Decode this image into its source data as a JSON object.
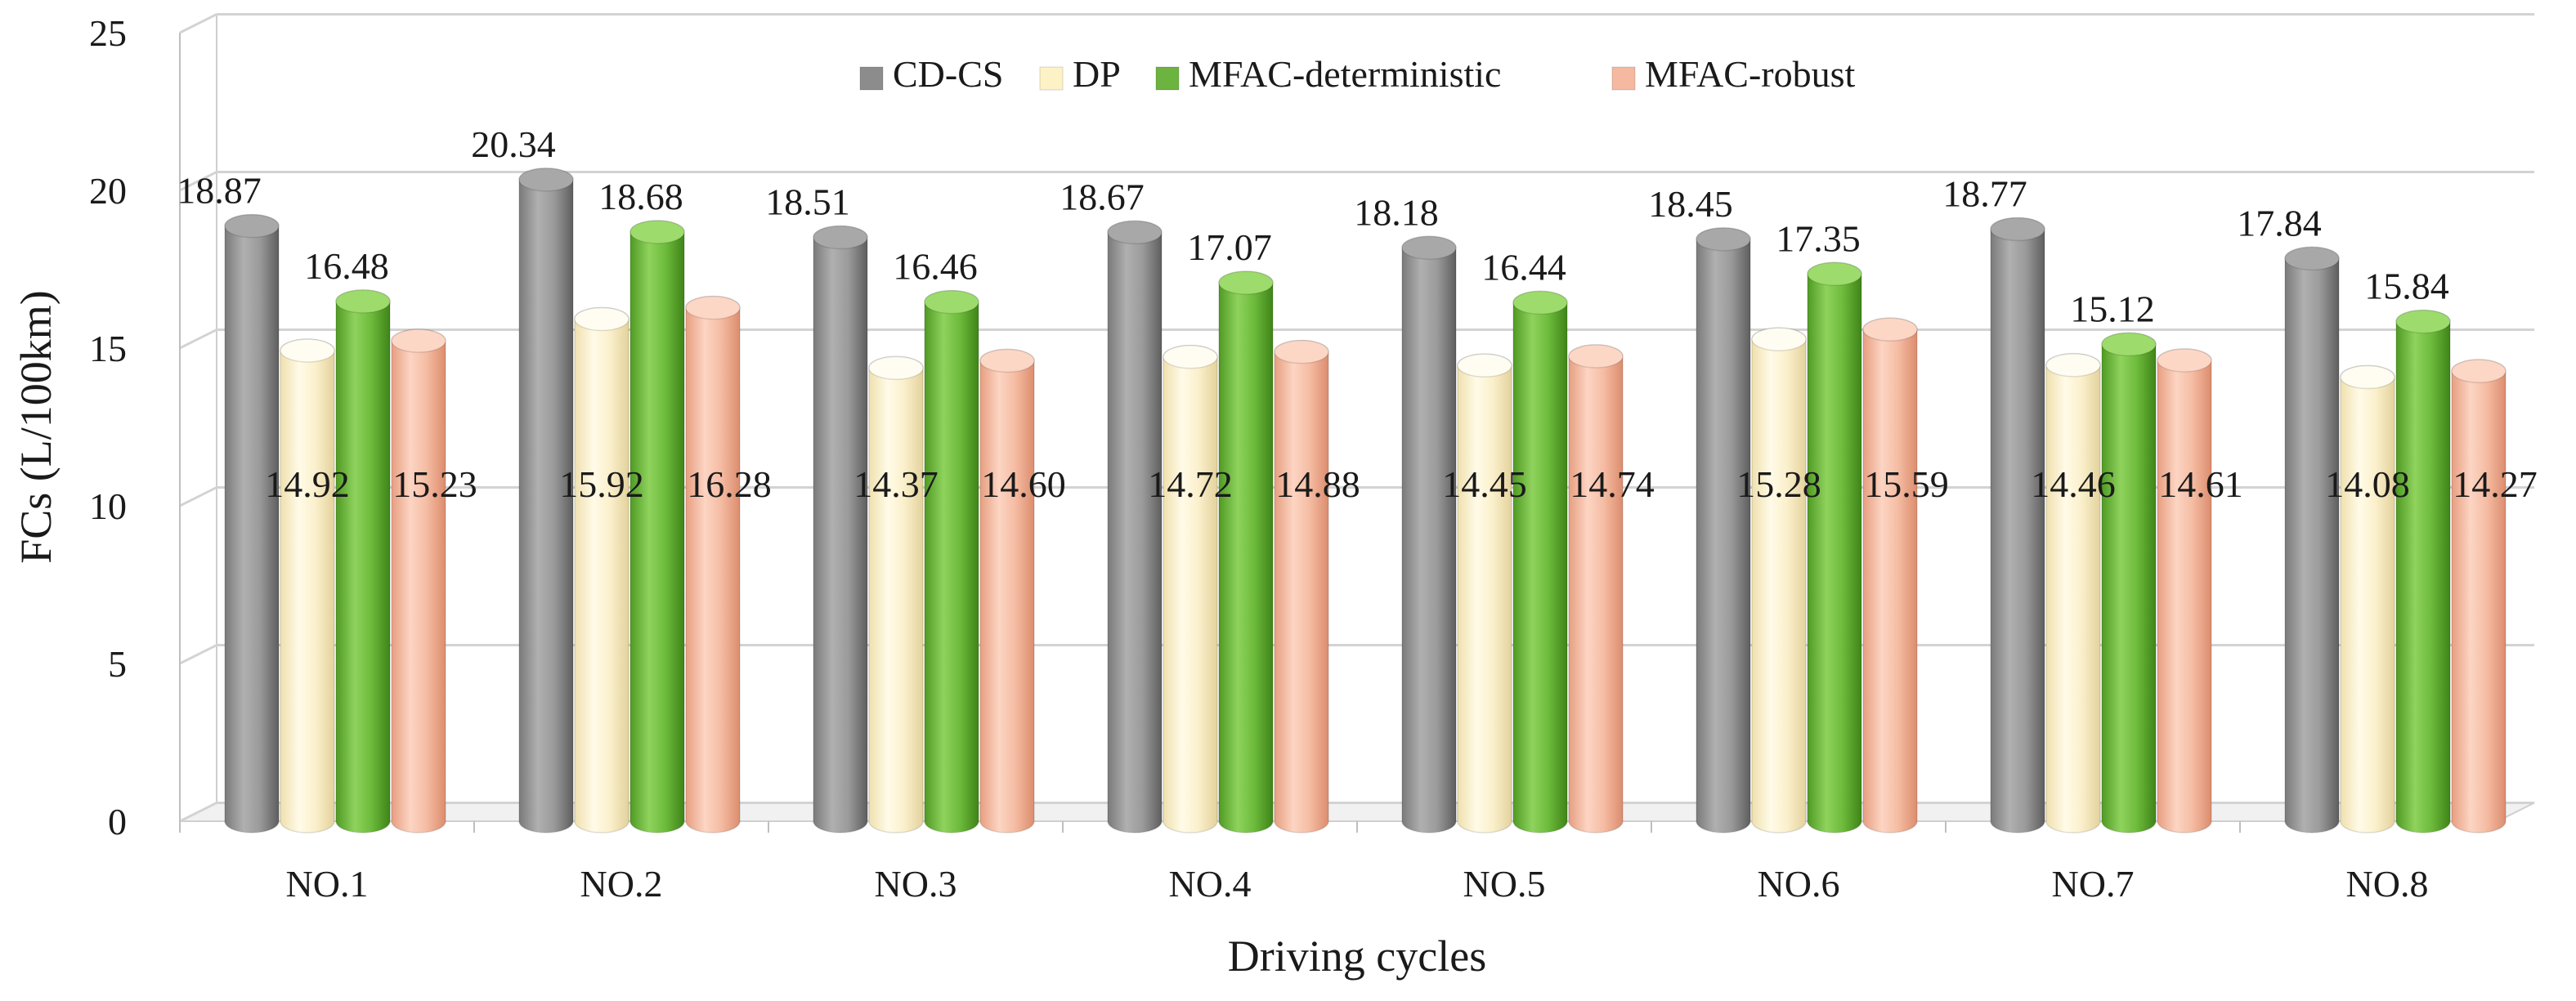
{
  "chart_data": {
    "type": "bar",
    "title": "",
    "xlabel": "Driving cycles",
    "ylabel": "FCs (L/100km)",
    "ylim": [
      0,
      25
    ],
    "yticks": [
      0,
      5,
      10,
      15,
      20,
      25
    ],
    "grid": true,
    "legend_position": "top-center",
    "categories": [
      "NO.1",
      "NO.2",
      "NO.3",
      "NO.4",
      "NO.5",
      "NO.6",
      "NO.7",
      "NO.8"
    ],
    "series": [
      {
        "name": "CD-CS",
        "color": "#8c8c8c",
        "values": [
          18.87,
          20.34,
          18.51,
          18.67,
          18.18,
          18.45,
          18.77,
          17.84
        ],
        "labels": [
          "18.87",
          "20.34",
          "18.51",
          "18.67",
          "18.18",
          "18.45",
          "18.77",
          "17.84"
        ]
      },
      {
        "name": "DP",
        "color": "#fdf1c6",
        "values": [
          14.92,
          15.92,
          14.37,
          14.72,
          14.45,
          15.28,
          14.46,
          14.08
        ],
        "labels": [
          "14.92",
          "15.92",
          "14.37",
          "14.72",
          "14.45",
          "15.28",
          "14.46",
          "14.08"
        ]
      },
      {
        "name": "MFAC-deterministic",
        "color": "#6db33f",
        "values": [
          16.48,
          18.68,
          16.46,
          17.07,
          16.44,
          17.35,
          15.12,
          15.84
        ],
        "labels": [
          "16.48",
          "18.68",
          "16.46",
          "17.07",
          "16.44",
          "17.35",
          "15.12",
          "15.84"
        ]
      },
      {
        "name": "MFAC-robust",
        "color": "#f4b9a0",
        "values": [
          15.23,
          16.28,
          14.6,
          14.88,
          14.74,
          15.59,
          14.61,
          14.27
        ],
        "labels": [
          "15.23",
          "16.28",
          "14.60",
          "14.88",
          "14.74",
          "15.59",
          "14.61",
          "14.27"
        ]
      }
    ]
  }
}
